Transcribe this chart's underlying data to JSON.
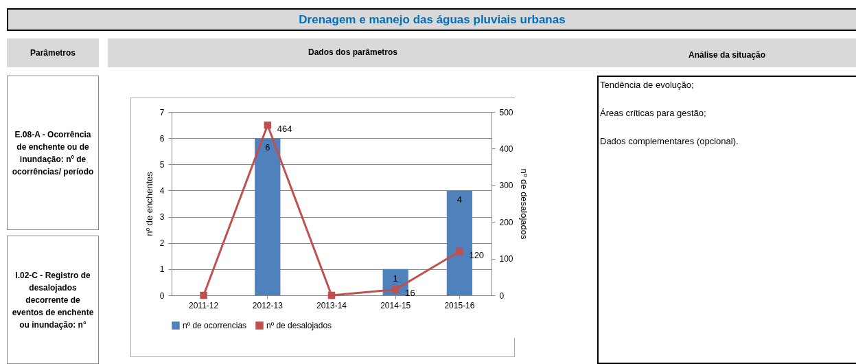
{
  "chart_data": {
    "type": "bar",
    "title": "Drenagem e manejo das águas pluviais urbanas",
    "categories": [
      "2011-12",
      "2012-13",
      "2013-14",
      "2014-15",
      "2015-16"
    ],
    "series": [
      {
        "name": "nº de ocorrencias",
        "type": "bar",
        "color": "#4f81bd",
        "values": [
          0,
          6,
          0,
          1,
          4
        ],
        "value_labels": [
          null,
          "6",
          null,
          "1",
          "4"
        ]
      },
      {
        "name": "nº de desalojados",
        "type": "line",
        "axis": "y2",
        "color": "#c0504d",
        "values": [
          0,
          464,
          0,
          16,
          120
        ],
        "value_labels": [
          null,
          "464",
          null,
          "16",
          "120"
        ]
      }
    ],
    "ylabel": "nº de enchentes",
    "y2label": "nº de desalojados",
    "ylim": [
      0,
      7
    ],
    "yticks": [
      0,
      1,
      2,
      3,
      4,
      5,
      6,
      7
    ],
    "y2lim": [
      0,
      500
    ],
    "y2ticks": [
      0,
      100,
      200,
      300,
      400,
      500
    ],
    "grid": "y",
    "legend": "bottom",
    "marker": "square",
    "line_style": "solid",
    "annotations": [
      "Parâmetros",
      "Dados dos parâmetros",
      "Análise da situação",
      "E.08-A - Ocorrência de enchente ou de inundação: nº de ocorrências/ período",
      "I.02-C -  Registro de desalojados decorrente de eventos de enchente ou inundação: n°",
      "Tendência de evolução;",
      "Áreas críticas para gestão;",
      "Dados complementares (opcional)."
    ]
  }
}
